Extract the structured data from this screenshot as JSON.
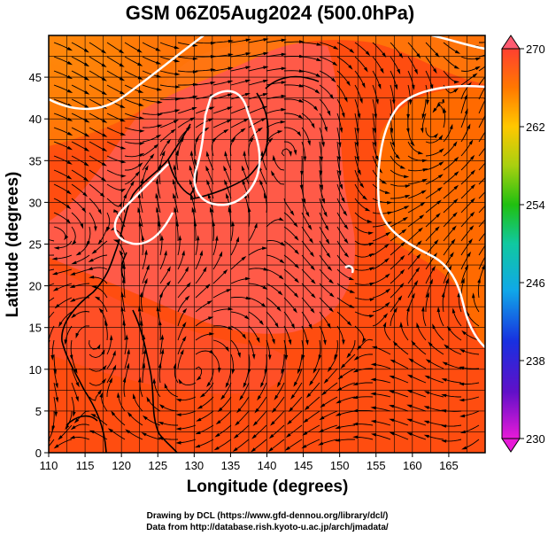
{
  "title": "GSM 06Z05Aug2024 (500.0hPa)",
  "xlabel": "Longitude (degrees)",
  "ylabel": "Latitude  (degrees)",
  "x_ticks": [
    "110",
    "115",
    "120",
    "125",
    "130",
    "135",
    "140",
    "145",
    "150",
    "155",
    "160",
    "165"
  ],
  "y_ticks": [
    "0",
    "5",
    "10",
    "15",
    "20",
    "25",
    "30",
    "35",
    "40",
    "45"
  ],
  "colorbar_ticks": [
    "230",
    "238",
    "246",
    "254",
    "262",
    "270"
  ],
  "credits": {
    "line1": "Drawing by DCL (https://www.gfd-dennou.org/library/dcl/)",
    "line2": "Data from http://database.rish.kyoto-u.ac.jp/arch/jmadata/"
  },
  "map": {
    "lon_range": [
      110,
      170
    ],
    "lat_range": [
      0,
      50
    ],
    "variable": "temperature shading with wind streamlines",
    "colorbar_range": [
      230,
      270
    ],
    "colors": {
      "warm_core": "#ff5545",
      "background": "#ff4d10",
      "orange": "#ff8a00",
      "yellow": "#ffd21e",
      "contour": "#ffffff",
      "streamline": "#000000",
      "grid": "#000000"
    }
  }
}
